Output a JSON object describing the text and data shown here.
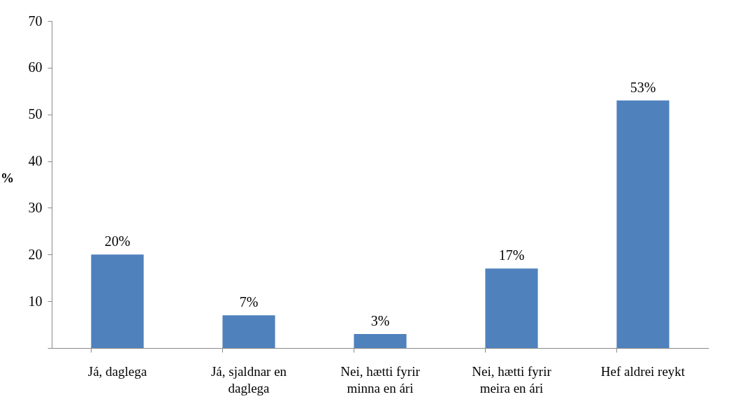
{
  "chart_data": {
    "type": "bar",
    "ylabel": "%",
    "categories": [
      "Já, daglega",
      "Já, sjaldnar en daglega",
      "Nei, hætti fyrir minna en ári",
      "Nei, hætti fyrir meira en ári",
      "Hef aldrei reykt"
    ],
    "values": [
      20,
      7,
      3,
      17,
      53
    ],
    "value_labels": [
      "20%",
      "7%",
      "3%",
      "17%",
      "53%"
    ],
    "color": "#4f81bd",
    "ylim": [
      0,
      70
    ],
    "yticks": [
      {
        "value": 0,
        "label": null
      },
      10,
      20,
      30,
      40,
      50,
      60,
      70
    ],
    "grid": false
  }
}
